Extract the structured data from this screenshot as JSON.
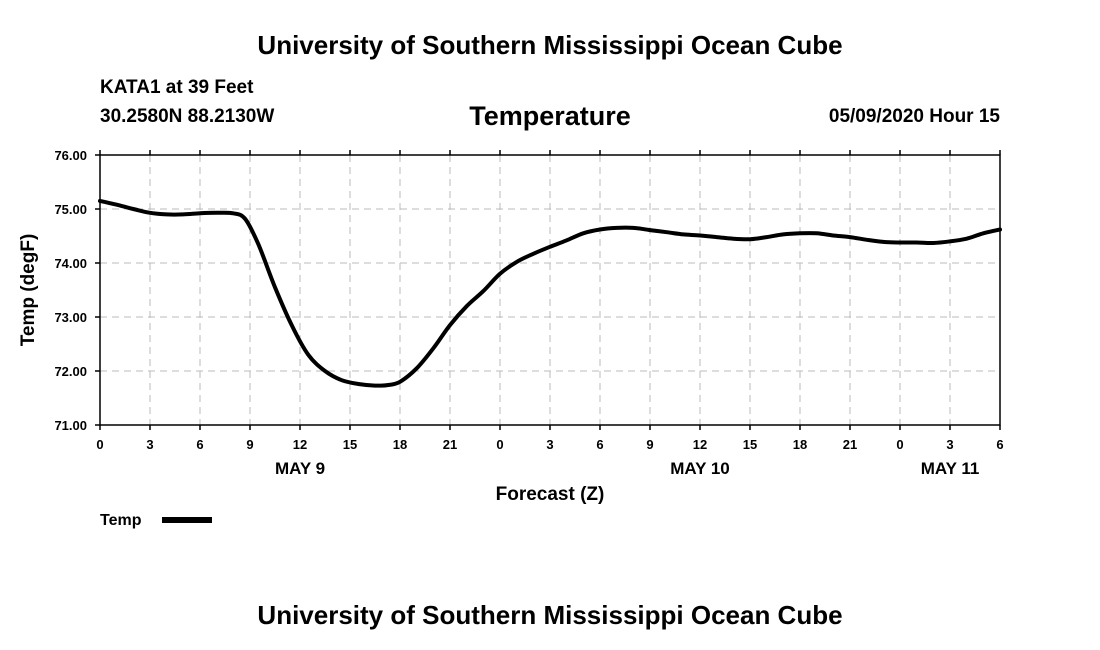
{
  "header": {
    "top_title": "University of Southern Mississippi Ocean Cube",
    "station": "KATA1 at 39 Feet",
    "coords": "30.2580N 88.2130W",
    "chart_title": "Temperature",
    "datetime": "05/09/2020 Hour 15",
    "bottom_title": "University of Southern Mississippi Ocean Cube"
  },
  "colors": {
    "line": "#000000",
    "grid": "#bbbbbb",
    "axis": "#000000"
  },
  "chart_data": {
    "type": "line",
    "title": "Temperature",
    "xlabel": "Forecast (Z)",
    "ylabel": "Temp (degF)",
    "ylim": [
      71.0,
      76.0
    ],
    "xlim": [
      0,
      54
    ],
    "x_unit": "forecast hours from 05/09/2020 00Z",
    "yticks": [
      "71.00",
      "72.00",
      "73.00",
      "74.00",
      "75.00",
      "76.00"
    ],
    "ytick_values": [
      71,
      72,
      73,
      74,
      75,
      76
    ],
    "xticks": [
      {
        "hour": 0,
        "label": "0"
      },
      {
        "hour": 3,
        "label": "3"
      },
      {
        "hour": 6,
        "label": "6"
      },
      {
        "hour": 9,
        "label": "9"
      },
      {
        "hour": 12,
        "label": "12"
      },
      {
        "hour": 15,
        "label": "15"
      },
      {
        "hour": 18,
        "label": "18"
      },
      {
        "hour": 21,
        "label": "21"
      },
      {
        "hour": 24,
        "label": "0"
      },
      {
        "hour": 27,
        "label": "3"
      },
      {
        "hour": 30,
        "label": "6"
      },
      {
        "hour": 33,
        "label": "9"
      },
      {
        "hour": 36,
        "label": "12"
      },
      {
        "hour": 39,
        "label": "15"
      },
      {
        "hour": 42,
        "label": "18"
      },
      {
        "hour": 45,
        "label": "21"
      },
      {
        "hour": 48,
        "label": "0"
      },
      {
        "hour": 51,
        "label": "3"
      },
      {
        "hour": 54,
        "label": "6"
      }
    ],
    "day_labels": [
      {
        "hour": 12,
        "label": "MAY 9"
      },
      {
        "hour": 36,
        "label": "MAY 10"
      },
      {
        "hour": 51,
        "label": "MAY 11"
      }
    ],
    "legend": [
      {
        "name": "Temp",
        "placement": "bottom-left"
      }
    ],
    "grid": true,
    "series": [
      {
        "name": "Temp",
        "x": [
          0,
          1,
          2,
          3,
          4,
          5,
          6,
          7,
          8,
          8.7,
          9.5,
          10.5,
          11.5,
          12.5,
          13.5,
          14.5,
          15.5,
          16.5,
          17.3,
          18,
          19,
          20,
          21,
          22,
          23,
          24,
          25,
          26,
          27,
          28,
          29,
          30,
          31,
          32,
          33,
          34,
          35,
          36,
          37,
          38,
          39,
          40,
          41,
          42,
          43,
          44,
          45,
          46,
          47,
          48,
          49,
          50,
          51,
          52,
          53,
          54
        ],
        "values": [
          75.15,
          75.08,
          75.0,
          74.93,
          74.9,
          74.9,
          74.92,
          74.93,
          74.92,
          74.82,
          74.35,
          73.55,
          72.85,
          72.3,
          72.0,
          71.83,
          71.76,
          71.73,
          71.74,
          71.8,
          72.05,
          72.42,
          72.85,
          73.2,
          73.48,
          73.8,
          74.02,
          74.17,
          74.3,
          74.42,
          74.55,
          74.62,
          74.65,
          74.65,
          74.61,
          74.57,
          74.53,
          74.51,
          74.48,
          74.45,
          74.44,
          74.48,
          74.53,
          74.55,
          74.55,
          74.51,
          74.48,
          74.43,
          74.39,
          74.38,
          74.38,
          74.37,
          74.4,
          74.45,
          74.55,
          74.62
        ]
      }
    ]
  }
}
